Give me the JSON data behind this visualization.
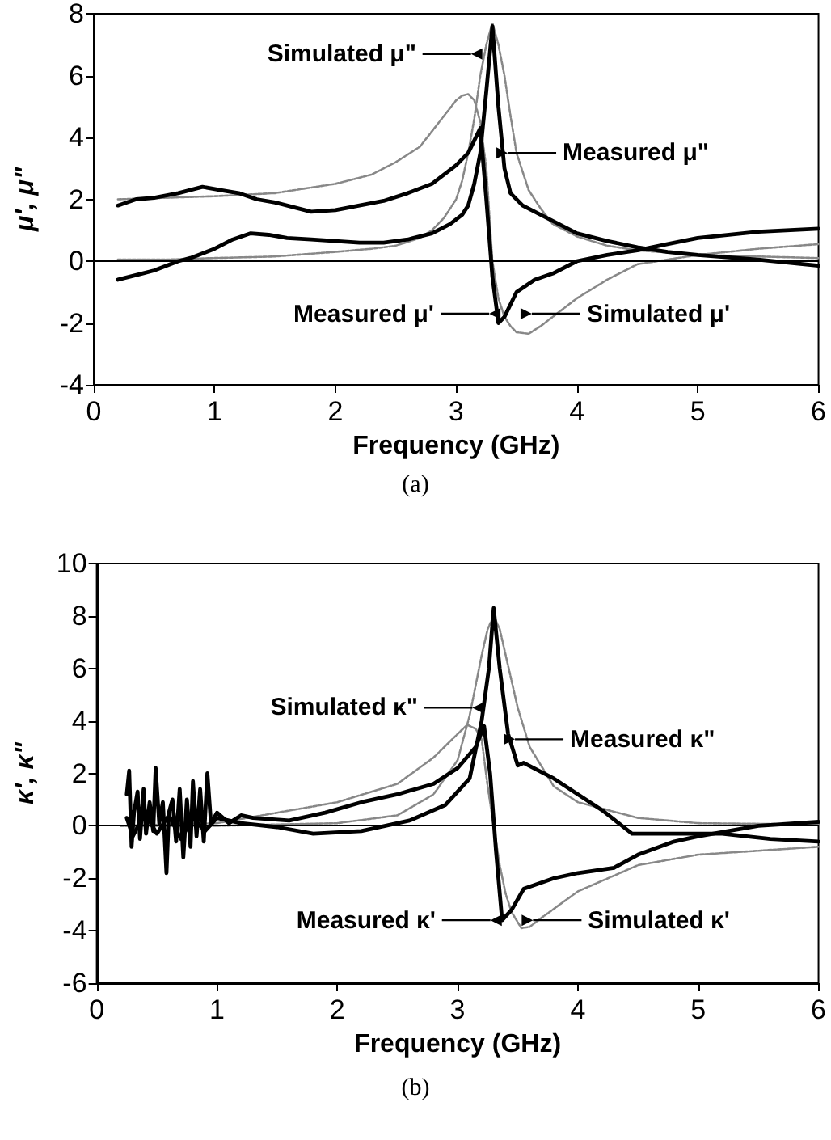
{
  "chart_data": [
    {
      "type": "line",
      "xlabel": "Frequency (GHz)",
      "ylabel": "μ', μ\"",
      "xlim": [
        0,
        6
      ],
      "xticks": [
        0,
        1,
        2,
        3,
        4,
        5,
        6
      ],
      "ylim": [
        -4,
        8
      ],
      "yticks": [
        -4,
        -2,
        0,
        2,
        4,
        6,
        8
      ],
      "grid": false,
      "marker": "none",
      "ref_lines": [
        {
          "axis": "y",
          "value": 0,
          "color": "#000000"
        }
      ],
      "series": [
        {
          "color": "#000000",
          "line_style": "solid",
          "x": [
            0.2,
            0.35,
            0.5,
            0.7,
            0.9,
            1.05,
            1.2,
            1.35,
            1.5,
            1.65,
            1.8,
            2.0,
            2.2,
            2.4,
            2.6,
            2.8,
            2.9,
            3.0,
            3.1,
            3.15,
            3.2,
            3.25,
            3.3,
            3.35,
            3.4,
            3.5,
            3.65,
            3.8,
            4.0,
            4.25,
            4.5,
            4.75,
            5.0,
            5.5,
            6.0
          ],
          "values": [
            1.8,
            2.0,
            2.05,
            2.2,
            2.4,
            2.3,
            2.2,
            2.0,
            1.9,
            1.75,
            1.6,
            1.65,
            1.8,
            1.95,
            2.2,
            2.5,
            2.8,
            3.1,
            3.5,
            3.9,
            4.3,
            2.0,
            -0.5,
            -2.0,
            -1.8,
            -1.0,
            -0.6,
            -0.4,
            0.0,
            0.2,
            0.35,
            0.55,
            0.75,
            0.95,
            1.05
          ]
        },
        {
          "color": "#000000",
          "line_style": "solid",
          "x": [
            0.2,
            0.3,
            0.4,
            0.5,
            0.6,
            0.7,
            0.8,
            0.9,
            1.0,
            1.15,
            1.3,
            1.45,
            1.6,
            1.8,
            2.0,
            2.2,
            2.4,
            2.6,
            2.8,
            2.95,
            3.05,
            3.1,
            3.15,
            3.2,
            3.25,
            3.3,
            3.35,
            3.4,
            3.45,
            3.55,
            3.7,
            3.85,
            4.0,
            4.25,
            4.5,
            4.75,
            5.0,
            5.5,
            6.0
          ],
          "values": [
            -0.6,
            -0.5,
            -0.4,
            -0.3,
            -0.15,
            0.0,
            0.1,
            0.25,
            0.4,
            0.7,
            0.9,
            0.85,
            0.75,
            0.7,
            0.65,
            0.6,
            0.6,
            0.7,
            0.9,
            1.2,
            1.5,
            1.8,
            2.5,
            3.5,
            5.5,
            7.6,
            5.0,
            3.0,
            2.2,
            1.8,
            1.5,
            1.2,
            0.9,
            0.65,
            0.45,
            0.3,
            0.2,
            0.05,
            -0.15
          ]
        },
        {
          "color": "#888888",
          "line_style": "dotted",
          "x": [
            0.2,
            0.6,
            1.0,
            1.5,
            2.0,
            2.3,
            2.5,
            2.7,
            2.8,
            2.9,
            3.0,
            3.05,
            3.1,
            3.15,
            3.2,
            3.25,
            3.3,
            3.35,
            3.4,
            3.45,
            3.5,
            3.6,
            3.7,
            3.8,
            4.0,
            4.25,
            4.5,
            5.0,
            5.5,
            6.0
          ],
          "values": [
            2.0,
            2.05,
            2.1,
            2.2,
            2.5,
            2.8,
            3.2,
            3.7,
            4.2,
            4.7,
            5.2,
            5.35,
            5.4,
            5.2,
            4.5,
            3.0,
            0.0,
            -1.2,
            -1.8,
            -2.1,
            -2.3,
            -2.35,
            -2.1,
            -1.8,
            -1.2,
            -0.6,
            -0.1,
            0.2,
            0.4,
            0.55
          ]
        },
        {
          "color": "#888888",
          "line_style": "dotted",
          "x": [
            0.2,
            0.6,
            1.0,
            1.5,
            2.0,
            2.3,
            2.5,
            2.7,
            2.8,
            2.9,
            3.0,
            3.05,
            3.1,
            3.15,
            3.2,
            3.25,
            3.3,
            3.35,
            3.4,
            3.45,
            3.5,
            3.6,
            3.7,
            3.8,
            4.0,
            4.25,
            4.5,
            5.0,
            5.5,
            6.0
          ],
          "values": [
            0.05,
            0.05,
            0.1,
            0.15,
            0.3,
            0.4,
            0.5,
            0.75,
            1.0,
            1.4,
            2.0,
            2.6,
            3.5,
            4.6,
            6.0,
            7.0,
            7.7,
            7.0,
            6.0,
            4.7,
            3.5,
            2.3,
            1.7,
            1.2,
            0.8,
            0.5,
            0.35,
            0.2,
            0.15,
            0.1
          ]
        }
      ],
      "annotations": [
        {
          "text": "Simulated μ\"",
          "x": 3.15,
          "y": 6.7
        },
        {
          "text": "Measured μ\"",
          "x": 3.4,
          "y": 3.5
        },
        {
          "text": "Measured μ'",
          "x": 3.3,
          "y": -1.7
        },
        {
          "text": "Simulated μ'",
          "x": 3.6,
          "y": -1.7
        },
        "(a)"
      ]
    },
    {
      "type": "line",
      "xlabel": "Frequency (GHz)",
      "ylabel": "κ', κ\"",
      "xlim": [
        0,
        6
      ],
      "xticks": [
        0,
        1,
        2,
        3,
        4,
        5,
        6
      ],
      "ylim": [
        -6,
        10
      ],
      "yticks": [
        -6,
        -4,
        -2,
        0,
        2,
        4,
        6,
        8,
        10
      ],
      "grid": false,
      "marker": "none",
      "ref_lines": [
        {
          "axis": "y",
          "value": 0,
          "color": "#000000"
        }
      ],
      "series": [
        {
          "color": "#000000",
          "line_style": "solid",
          "x": [
            0.25,
            0.27,
            0.29,
            0.31,
            0.34,
            0.36,
            0.39,
            0.41,
            0.44,
            0.47,
            0.49,
            0.52,
            0.55,
            0.58,
            0.6,
            0.63,
            0.66,
            0.69,
            0.72,
            0.75,
            0.78,
            0.8,
            0.83,
            0.86,
            0.89,
            0.92,
            0.95,
            1.0,
            1.1,
            1.2,
            1.3,
            1.6,
            1.9,
            2.2,
            2.5,
            2.8,
            3.0,
            3.15,
            3.22,
            3.27,
            3.32,
            3.37,
            3.45,
            3.55,
            3.8,
            4.0,
            4.3,
            4.5,
            4.8,
            5.0,
            5.5,
            6.0
          ],
          "values": [
            1.2,
            2.1,
            -0.8,
            0.5,
            1.3,
            -0.5,
            1.4,
            -0.3,
            0.9,
            -0.2,
            2.2,
            0.1,
            0.9,
            -1.8,
            0.5,
            1.0,
            -0.6,
            1.4,
            -1.2,
            1.0,
            -0.8,
            1.7,
            -0.4,
            1.4,
            -0.6,
            2.0,
            0.1,
            0.5,
            0.1,
            0.4,
            0.3,
            0.2,
            0.5,
            0.9,
            1.2,
            1.6,
            2.2,
            3.0,
            3.8,
            2.0,
            -1.0,
            -3.6,
            -3.2,
            -2.4,
            -2.0,
            -1.8,
            -1.6,
            -1.1,
            -0.6,
            -0.4,
            0.0,
            0.15
          ]
        },
        {
          "color": "#000000",
          "line_style": "solid",
          "x": [
            0.25,
            0.3,
            0.4,
            0.5,
            0.6,
            0.7,
            0.8,
            0.9,
            1.0,
            1.2,
            1.5,
            1.8,
            2.2,
            2.6,
            2.9,
            3.1,
            3.2,
            3.26,
            3.3,
            3.35,
            3.42,
            3.5,
            3.55,
            3.8,
            4.2,
            4.45,
            4.8,
            5.2,
            5.6,
            6.0
          ],
          "values": [
            0.3,
            -0.4,
            0.5,
            -0.3,
            0.4,
            -0.5,
            0.3,
            -0.2,
            0.3,
            0.1,
            -0.05,
            -0.3,
            -0.2,
            0.2,
            0.8,
            1.8,
            4.0,
            6.0,
            8.3,
            6.0,
            3.5,
            2.3,
            2.4,
            1.8,
            0.6,
            -0.3,
            -0.3,
            -0.3,
            -0.5,
            -0.6
          ]
        },
        {
          "color": "#888888",
          "line_style": "dotted",
          "x": [
            0.2,
            0.6,
            1.0,
            1.5,
            2.0,
            2.5,
            2.8,
            3.0,
            3.08,
            3.15,
            3.2,
            3.25,
            3.3,
            3.35,
            3.4,
            3.45,
            3.53,
            3.6,
            3.7,
            3.85,
            4.0,
            4.5,
            5.0,
            5.5,
            6.0
          ],
          "values": [
            0.0,
            0.05,
            0.1,
            0.5,
            0.9,
            1.6,
            2.6,
            3.5,
            3.85,
            3.7,
            3.3,
            1.5,
            0.0,
            -1.5,
            -2.6,
            -3.3,
            -3.9,
            -3.85,
            -3.5,
            -3.0,
            -2.5,
            -1.5,
            -1.1,
            -0.95,
            -0.8
          ]
        },
        {
          "color": "#888888",
          "line_style": "dotted",
          "x": [
            0.2,
            0.6,
            1.0,
            1.5,
            2.0,
            2.5,
            2.8,
            3.0,
            3.1,
            3.2,
            3.25,
            3.3,
            3.35,
            3.4,
            3.5,
            3.6,
            3.8,
            4.0,
            4.5,
            5.0,
            6.0
          ],
          "values": [
            0.0,
            0.0,
            0.0,
            0.05,
            0.1,
            0.4,
            1.2,
            2.5,
            4.2,
            6.5,
            7.5,
            8.0,
            7.5,
            6.5,
            4.5,
            3.0,
            1.5,
            0.9,
            0.3,
            0.1,
            0.05
          ]
        }
      ],
      "annotations": [
        {
          "text": "Simulated κ\"",
          "x": 3.15,
          "y": 4.5
        },
        {
          "text": "Measured κ\"",
          "x": 3.45,
          "y": 3.3
        },
        {
          "text": "Measured κ'",
          "x": 3.3,
          "y": -3.6
        },
        {
          "text": "Simulated κ'",
          "x": 3.6,
          "y": -3.6
        },
        "(b)"
      ]
    }
  ]
}
